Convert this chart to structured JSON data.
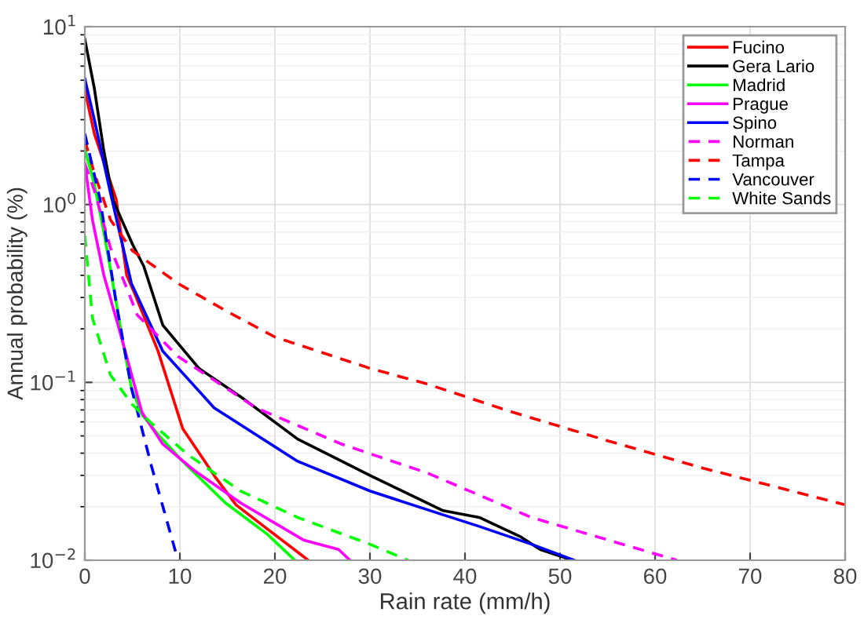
{
  "chart_data": {
    "type": "line",
    "xlabel": "Rain rate (mm/h)",
    "ylabel": "Annual probability (%)",
    "log": "y",
    "grid": true,
    "legend": "top right",
    "xlim": [
      0,
      80
    ],
    "ylim": [
      0.01,
      10
    ],
    "xticks": [
      0,
      10,
      20,
      30,
      40,
      50,
      60,
      70,
      80
    ],
    "yticks": [
      {
        "value": 0.01,
        "label": "10$^{−2}$"
      },
      {
        "value": 0.1,
        "label": "10$^{−1}$"
      },
      {
        "value": 1,
        "label": "10$^{0}$"
      },
      {
        "value": 10,
        "label": "10$^{1}$"
      }
    ],
    "series": [
      {
        "name": "Fucino",
        "color": "#ff0000",
        "line_style": "solid",
        "x": [
          0,
          1,
          3.3,
          4.4,
          5.2,
          7.7,
          10.3,
          13.6,
          15.9,
          19.2,
          23,
          23.5
        ],
        "values": [
          4.4,
          2.5,
          1.07,
          0.4,
          0.32,
          0.15,
          0.055,
          0.03,
          0.0205,
          0.015,
          0.0105,
          0.01
        ]
      },
      {
        "name": "Gera Lario",
        "color": "#000000",
        "line_style": "solid",
        "x": [
          0,
          1,
          2,
          3,
          5,
          6.2,
          8.2,
          12,
          16.4,
          22.4,
          30,
          37.7,
          41.5,
          45.9,
          47.9,
          51.3
        ],
        "values": [
          8.5,
          4.5,
          2.0,
          1.05,
          0.6,
          0.45,
          0.21,
          0.12,
          0.083,
          0.048,
          0.03,
          0.019,
          0.0174,
          0.0135,
          0.0115,
          0.01
        ]
      },
      {
        "name": "Madrid",
        "color": "#00ff00",
        "line_style": "solid",
        "x": [
          0,
          1,
          2,
          3,
          4,
          4.9,
          6,
          7.7,
          10.3,
          14.8,
          19.2,
          22.1
        ],
        "values": [
          2.05,
          1.3,
          0.7,
          0.35,
          0.17,
          0.093,
          0.066,
          0.051,
          0.036,
          0.021,
          0.014,
          0.01
        ]
      },
      {
        "name": "Prague",
        "color": "#ff00ff",
        "line_style": "solid",
        "x": [
          0,
          0.8,
          2,
          3.6,
          6,
          8.2,
          11.5,
          16.4,
          23,
          26.7,
          27.9
        ],
        "values": [
          1.7,
          0.82,
          0.4,
          0.2,
          0.068,
          0.045,
          0.032,
          0.021,
          0.013,
          0.0115,
          0.01
        ]
      },
      {
        "name": "Spino",
        "color": "#0000ff",
        "line_style": "solid",
        "x": [
          0,
          1,
          2.7,
          4.9,
          8.2,
          13.6,
          22.4,
          30,
          37.7,
          41.5,
          47,
          51.5
        ],
        "values": [
          5.1,
          3,
          1.16,
          0.36,
          0.15,
          0.072,
          0.036,
          0.0245,
          0.018,
          0.0155,
          0.0123,
          0.01
        ]
      },
      {
        "name": "Norman",
        "color": "#ff00ff",
        "line_style": "dashed",
        "x": [
          0,
          1,
          2.7,
          4.6,
          5.5,
          9.8,
          18,
          27,
          36,
          47,
          62.3
        ],
        "values": [
          1.7,
          1.2,
          0.57,
          0.32,
          0.24,
          0.14,
          0.072,
          0.045,
          0.031,
          0.0174,
          0.01
        ]
      },
      {
        "name": "Tampa",
        "color": "#ff0000",
        "line_style": "dashed",
        "x": [
          0,
          1,
          2.7,
          5,
          9.8,
          15,
          20,
          30,
          36,
          45,
          55,
          65,
          80
        ],
        "values": [
          2.3,
          1.5,
          0.82,
          0.55,
          0.36,
          0.25,
          0.18,
          0.12,
          0.098,
          0.068,
          0.047,
          0.033,
          0.0205
        ]
      },
      {
        "name": "Vancouver",
        "color": "#0000ff",
        "line_style": "dashed",
        "x": [
          0,
          1.6,
          3.3,
          4.9,
          7,
          9.8
        ],
        "values": [
          2.5,
          1.07,
          0.28,
          0.093,
          0.034,
          0.01
        ]
      },
      {
        "name": "White Sands",
        "color": "#00ff00",
        "line_style": "dashed",
        "x": [
          0,
          0.8,
          2.7,
          5,
          7,
          10.9,
          16.4,
          22.4,
          30,
          34
        ],
        "values": [
          0.67,
          0.23,
          0.11,
          0.075,
          0.059,
          0.039,
          0.0245,
          0.0174,
          0.0123,
          0.01
        ]
      }
    ]
  }
}
